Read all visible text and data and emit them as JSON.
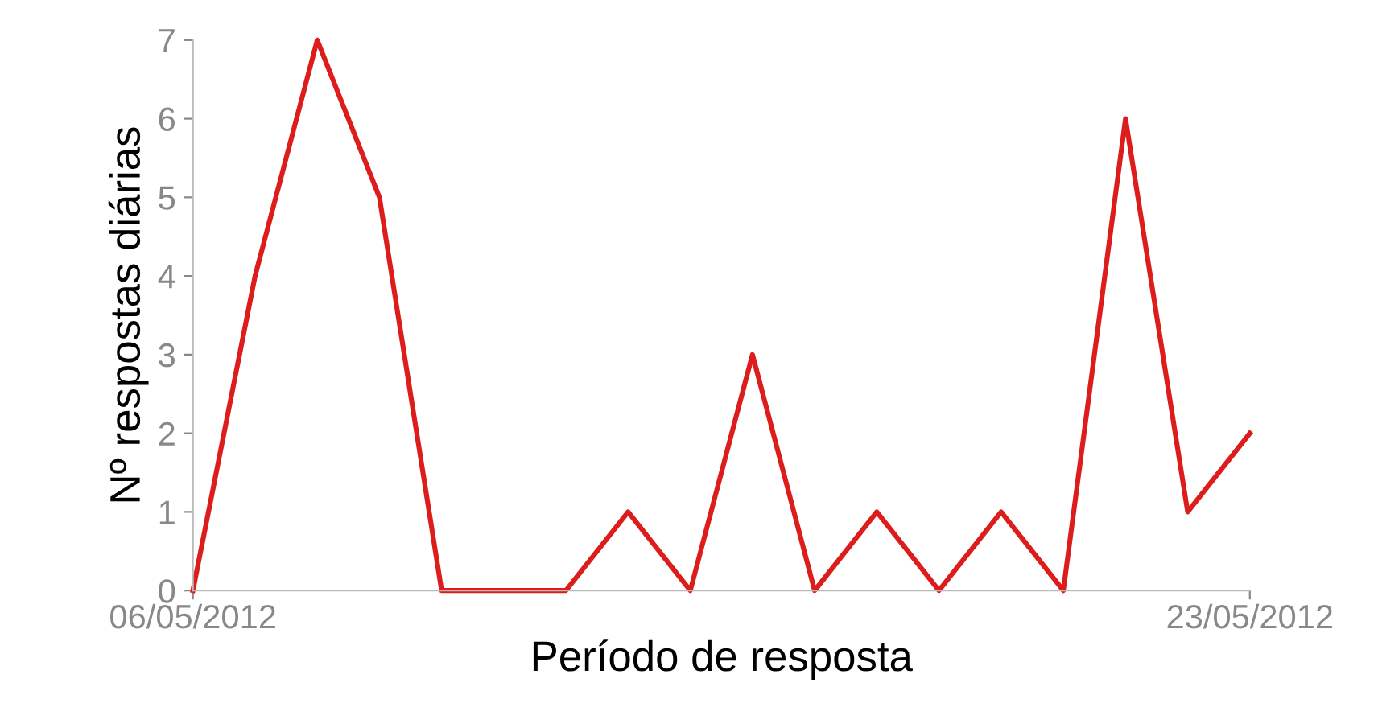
{
  "chart_data": {
    "type": "line",
    "xlabel": "Período de resposta",
    "ylabel": "Nº respostas diárias",
    "x": [
      "2012-05-06",
      "2012-05-07",
      "2012-05-08",
      "2012-05-09",
      "2012-05-10",
      "2012-05-11",
      "2012-05-12",
      "2012-05-13",
      "2012-05-14",
      "2012-05-15",
      "2012-05-16",
      "2012-05-17",
      "2012-05-18",
      "2012-05-19",
      "2012-05-20",
      "2012-05-21",
      "2012-05-22",
      "2012-05-23"
    ],
    "series": [
      {
        "color": "#dd1c1c",
        "values": [
          0,
          4,
          7,
          5,
          0,
          0,
          0,
          1,
          0,
          3,
          0,
          1,
          0,
          1,
          0,
          6,
          1,
          2
        ]
      }
    ],
    "xlim": [
      "2012-05-06",
      "2012-05-23"
    ],
    "xticks": [
      {
        "value": "2012-05-06",
        "label": "06/05/2012"
      },
      {
        "value": "2012-05-23",
        "label": "23/05/2012"
      }
    ],
    "ylim": [
      0,
      7
    ],
    "yticks": [
      0,
      1,
      2,
      3,
      4,
      5,
      6,
      7
    ],
    "grid": false,
    "legend": false,
    "marker": "none",
    "line_style": "solid"
  }
}
